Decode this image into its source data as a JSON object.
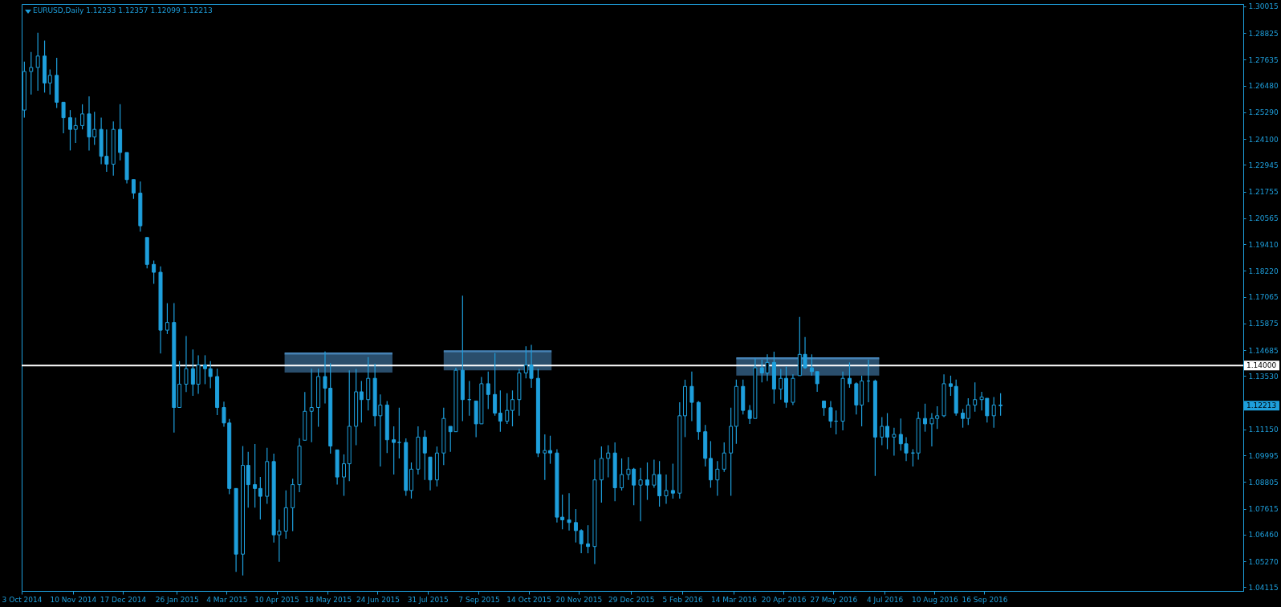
{
  "chart_data": {
    "type": "candlestick",
    "title": "EURUSD,Daily 1.12233 1.12357 1.12099 1.12213",
    "color": "#1e9fdc",
    "x": [
      "2014-10-05",
      "2014-10-10",
      "2014-10-15",
      "2014-10-20",
      "2014-10-24",
      "2014-10-29",
      "2014-11-03",
      "2014-11-08",
      "2014-11-12",
      "2014-11-17",
      "2014-11-22",
      "2014-11-26",
      "2014-12-01",
      "2014-12-05",
      "2014-12-10",
      "2014-12-15",
      "2014-12-20",
      "2014-12-25",
      "2014-12-30",
      "2015-01-04",
      "2015-01-09",
      "2015-01-14",
      "2015-01-19",
      "2015-01-24",
      "2015-01-28",
      "2015-02-02",
      "2015-02-07",
      "2015-02-11",
      "2015-02-16",
      "2015-02-20",
      "2015-02-25",
      "2015-03-02",
      "2015-03-06",
      "2015-03-11",
      "2015-03-16",
      "2015-03-20",
      "2015-03-25",
      "2015-03-29",
      "2015-04-03",
      "2015-04-08",
      "2015-04-12",
      "2015-04-17",
      "2015-04-22",
      "2015-04-27",
      "2015-05-01",
      "2015-05-06",
      "2015-05-11",
      "2015-05-16",
      "2015-05-20",
      "2015-05-25",
      "2015-05-30",
      "2015-06-03",
      "2015-06-08",
      "2015-06-12",
      "2015-06-17",
      "2015-06-22",
      "2015-06-26",
      "2015-07-01",
      "2015-07-06",
      "2015-07-10",
      "2015-07-15",
      "2015-07-19",
      "2015-07-24",
      "2015-07-29",
      "2015-08-02",
      "2015-08-07",
      "2015-08-12",
      "2015-08-17",
      "2015-08-21",
      "2015-08-26",
      "2015-08-31",
      "2015-09-05",
      "2015-09-09",
      "2015-09-14",
      "2015-09-19",
      "2015-09-23",
      "2015-09-28",
      "2015-10-02",
      "2015-10-07",
      "2015-10-12",
      "2015-10-16",
      "2015-10-21",
      "2015-10-26",
      "2015-10-30",
      "2015-11-04",
      "2015-11-08",
      "2015-11-13",
      "2015-11-18",
      "2015-11-22",
      "2015-11-27",
      "2015-12-02",
      "2015-12-07",
      "2015-12-12",
      "2015-12-17",
      "2015-12-22",
      "2015-12-27",
      "2015-12-31",
      "2016-01-05",
      "2016-01-10",
      "2016-01-15",
      "2016-01-19",
      "2016-01-24",
      "2016-01-29",
      "2016-02-03",
      "2016-02-07",
      "2016-02-12",
      "2016-02-17",
      "2016-02-22",
      "2016-02-26",
      "2016-03-02",
      "2016-03-07",
      "2016-03-12",
      "2016-03-16",
      "2016-03-21",
      "2016-03-26",
      "2016-03-30",
      "2016-04-04",
      "2016-04-08",
      "2016-04-13",
      "2016-04-18",
      "2016-04-22",
      "2016-04-27",
      "2016-05-02",
      "2016-05-06",
      "2016-05-11",
      "2016-05-15",
      "2016-05-20",
      "2016-05-25",
      "2016-05-29",
      "2016-06-03",
      "2016-06-08",
      "2016-06-13",
      "2016-06-17",
      "2016-06-22",
      "2016-06-27",
      "2016-07-02",
      "2016-07-06",
      "2016-07-11",
      "2016-07-16",
      "2016-07-20",
      "2016-07-25",
      "2016-07-29",
      "2016-08-03",
      "2016-08-08",
      "2016-08-12",
      "2016-08-17",
      "2016-08-22",
      "2016-08-26",
      "2016-08-31",
      "2016-09-04",
      "2016-09-09",
      "2016-09-14",
      "2016-09-18",
      "2016-09-23",
      "2016-09-28"
    ],
    "ohlc": [
      [
        1.2539,
        1.2755,
        1.2505,
        1.2711
      ],
      [
        1.2711,
        1.2798,
        1.2608,
        1.2729
      ],
      [
        1.2729,
        1.2884,
        1.2625,
        1.278
      ],
      [
        1.278,
        1.2849,
        1.2617,
        1.266
      ],
      [
        1.266,
        1.272,
        1.2608,
        1.2694
      ],
      [
        1.2694,
        1.2772,
        1.2548,
        1.2574
      ],
      [
        1.2574,
        1.2574,
        1.2436,
        1.2505
      ],
      [
        1.2505,
        1.2539,
        1.2359,
        1.2453
      ],
      [
        1.2453,
        1.2505,
        1.2393,
        1.247
      ],
      [
        1.247,
        1.2565,
        1.2453,
        1.2522
      ],
      [
        1.2522,
        1.26,
        1.2359,
        1.2419
      ],
      [
        1.2419,
        1.2531,
        1.2384,
        1.2453
      ],
      [
        1.2453,
        1.2505,
        1.2298,
        1.2333
      ],
      [
        1.2333,
        1.2453,
        1.2264,
        1.2298
      ],
      [
        1.2298,
        1.2488,
        1.2247,
        1.2453
      ],
      [
        1.2453,
        1.2565,
        1.2315,
        1.235
      ],
      [
        1.235,
        1.235,
        1.2212,
        1.2229
      ],
      [
        1.2229,
        1.2229,
        1.2143,
        1.2169
      ],
      [
        1.2169,
        1.2221,
        1.1997,
        1.2023
      ],
      [
        1.1971,
        1.1971,
        1.1833,
        1.1851
      ],
      [
        1.1851,
        1.1868,
        1.1764,
        1.1816
      ],
      [
        1.1816,
        1.1842,
        1.1454,
        1.1558
      ],
      [
        1.1558,
        1.1678,
        1.1541,
        1.1592
      ],
      [
        1.1592,
        1.1678,
        1.1101,
        1.1213
      ],
      [
        1.1213,
        1.142,
        1.1213,
        1.1317
      ],
      [
        1.1317,
        1.1532,
        1.1282,
        1.1386
      ],
      [
        1.1386,
        1.1472,
        1.1265,
        1.1317
      ],
      [
        1.1317,
        1.1446,
        1.1274,
        1.1403
      ],
      [
        1.1403,
        1.1446,
        1.1317,
        1.1386
      ],
      [
        1.1386,
        1.142,
        1.1299,
        1.1351
      ],
      [
        1.1351,
        1.1386,
        1.1179,
        1.1213
      ],
      [
        1.1213,
        1.1239,
        1.1127,
        1.1144
      ],
      [
        1.1144,
        1.1162,
        1.0826,
        1.0852
      ],
      [
        1.0852,
        1.0852,
        1.048,
        1.0559
      ],
      [
        1.0559,
        1.1041,
        1.0464,
        1.0955
      ],
      [
        1.0955,
        1.1015,
        1.0766,
        1.0869
      ],
      [
        1.0869,
        1.105,
        1.0766,
        1.0852
      ],
      [
        1.0852,
        1.0903,
        1.0714,
        1.0817
      ],
      [
        1.0817,
        1.1033,
        1.0783,
        1.0972
      ],
      [
        1.0972,
        1.1007,
        1.0611,
        1.0645
      ],
      [
        1.0645,
        1.0714,
        1.0525,
        1.0662
      ],
      [
        1.0662,
        1.0843,
        1.0628,
        1.0766
      ],
      [
        1.0766,
        1.0895,
        1.0662,
        1.0869
      ],
      [
        1.0869,
        1.1076,
        1.0835,
        1.1041
      ],
      [
        1.1067,
        1.1282,
        1.1067,
        1.1196
      ],
      [
        1.1196,
        1.1386,
        1.1058,
        1.1213
      ],
      [
        1.1213,
        1.1386,
        1.1127,
        1.1351
      ],
      [
        1.1351,
        1.1463,
        1.1231,
        1.1299
      ],
      [
        1.1299,
        1.1411,
        1.1007,
        1.1041
      ],
      [
        1.1024,
        1.1024,
        1.0869,
        1.0903
      ],
      [
        1.0903,
        1.1004,
        1.0819,
        1.0962
      ],
      [
        1.0962,
        1.1379,
        1.0885,
        1.1129
      ],
      [
        1.1129,
        1.1385,
        1.1045,
        1.1283
      ],
      [
        1.1283,
        1.1331,
        1.1146,
        1.1248
      ],
      [
        1.1248,
        1.1438,
        1.12,
        1.1343
      ],
      [
        1.1343,
        1.1408,
        1.1129,
        1.1176
      ],
      [
        1.1176,
        1.1271,
        1.095,
        1.1224
      ],
      [
        1.1224,
        1.1242,
        1.101,
        1.1069
      ],
      [
        1.1069,
        1.1129,
        1.0914,
        1.1057
      ],
      [
        1.1057,
        1.1212,
        1.0986,
        1.1057
      ],
      [
        1.1057,
        1.1075,
        1.0819,
        1.0843
      ],
      [
        1.0843,
        1.0968,
        1.0807,
        1.0938
      ],
      [
        1.0938,
        1.1129,
        1.0914,
        1.1081
      ],
      [
        1.1081,
        1.1111,
        1.089,
        1.101
      ],
      [
        1.0992,
        1.0992,
        1.0843,
        1.089
      ],
      [
        1.089,
        1.1039,
        1.0861,
        1.101
      ],
      [
        1.101,
        1.1212,
        1.0956,
        1.1164
      ],
      [
        1.1129,
        1.1129,
        1.1015,
        1.1105
      ],
      [
        1.1105,
        1.139,
        1.1105,
        1.1379
      ],
      [
        1.1379,
        1.1712,
        1.1152,
        1.1248
      ],
      [
        1.1248,
        1.1331,
        1.1176,
        1.1248
      ],
      [
        1.1242,
        1.1242,
        1.1081,
        1.114
      ],
      [
        1.114,
        1.1349,
        1.114,
        1.1319
      ],
      [
        1.1319,
        1.1373,
        1.1206,
        1.1271
      ],
      [
        1.1271,
        1.1456,
        1.1176,
        1.1188
      ],
      [
        1.1188,
        1.1289,
        1.1105,
        1.1152
      ],
      [
        1.1152,
        1.1277,
        1.114,
        1.12
      ],
      [
        1.12,
        1.1289,
        1.1129,
        1.1248
      ],
      [
        1.1248,
        1.1385,
        1.1176,
        1.1367
      ],
      [
        1.1367,
        1.1486,
        1.1343,
        1.1402
      ],
      [
        1.1402,
        1.1492,
        1.1301,
        1.1343
      ],
      [
        1.1343,
        1.1385,
        1.0992,
        1.101
      ],
      [
        1.101,
        1.1093,
        1.089,
        1.1021
      ],
      [
        1.1021,
        1.1087,
        1.0962,
        1.101
      ],
      [
        1.101,
        1.1027,
        1.07,
        1.0724
      ],
      [
        1.0724,
        1.0825,
        1.067,
        1.0712
      ],
      [
        1.0712,
        1.0831,
        1.0664,
        1.07
      ],
      [
        1.07,
        1.076,
        1.0611,
        1.0664
      ],
      [
        1.0664,
        1.067,
        1.0563,
        1.0605
      ],
      [
        1.0605,
        1.0688,
        1.0563,
        1.0593
      ],
      [
        1.0593,
        1.098,
        1.0515,
        1.089
      ],
      [
        1.089,
        1.1039,
        1.0789,
        1.0986
      ],
      [
        1.0986,
        1.1045,
        1.0902,
        1.101
      ],
      [
        1.101,
        1.1057,
        1.0795,
        1.0855
      ],
      [
        1.0855,
        1.0986,
        1.0843,
        1.0914
      ],
      [
        1.0914,
        1.0992,
        1.089,
        1.0938
      ],
      [
        1.0938,
        1.0944,
        1.0777,
        1.0867
      ],
      [
        1.0867,
        1.0944,
        1.0706,
        1.089
      ],
      [
        1.089,
        1.0968,
        1.0801,
        1.0867
      ],
      [
        1.0867,
        1.098,
        1.0855,
        1.0914
      ],
      [
        1.0914,
        1.0974,
        1.0771,
        1.0819
      ],
      [
        1.0819,
        1.0914,
        1.0783,
        1.0843
      ],
      [
        1.0843,
        1.0962,
        1.0807,
        1.0831
      ],
      [
        1.0831,
        1.1236,
        1.0807,
        1.1176
      ],
      [
        1.1176,
        1.1337,
        1.1081,
        1.1307
      ],
      [
        1.1307,
        1.1373,
        1.1152,
        1.1236
      ],
      [
        1.1236,
        1.1242,
        1.1069,
        1.1105
      ],
      [
        1.1105,
        1.1135,
        1.095,
        1.0986
      ],
      [
        1.0986,
        1.1063,
        1.0855,
        1.089
      ],
      [
        1.089,
        1.0974,
        1.0819,
        1.0938
      ],
      [
        1.0938,
        1.1057,
        1.0926,
        1.101
      ],
      [
        1.101,
        1.1212,
        1.0819,
        1.1129
      ],
      [
        1.1129,
        1.1337,
        1.1051,
        1.1307
      ],
      [
        1.1307,
        1.1337,
        1.1182,
        1.12
      ],
      [
        1.12,
        1.1224,
        1.114,
        1.1164
      ],
      [
        1.1164,
        1.1432,
        1.1164,
        1.139
      ],
      [
        1.139,
        1.1426,
        1.1325,
        1.1367
      ],
      [
        1.1367,
        1.145,
        1.1331,
        1.1414
      ],
      [
        1.1414,
        1.1462,
        1.123,
        1.1295
      ],
      [
        1.1295,
        1.1385,
        1.1248,
        1.1343
      ],
      [
        1.1343,
        1.1396,
        1.1212,
        1.1236
      ],
      [
        1.1236,
        1.1361,
        1.1224,
        1.1343
      ],
      [
        1.1355,
        1.1617,
        1.1355,
        1.145
      ],
      [
        1.145,
        1.1527,
        1.1385,
        1.139
      ],
      [
        1.139,
        1.145,
        1.1355,
        1.1373
      ],
      [
        1.1373,
        1.1373,
        1.1283,
        1.1319
      ],
      [
        1.1242,
        1.1242,
        1.1176,
        1.1212
      ],
      [
        1.1212,
        1.1242,
        1.1123,
        1.1152
      ],
      [
        1.1152,
        1.12,
        1.1093,
        1.1152
      ],
      [
        1.1152,
        1.1373,
        1.1111,
        1.1343
      ],
      [
        1.1343,
        1.1414,
        1.1301,
        1.1319
      ],
      [
        1.1319,
        1.1325,
        1.1182,
        1.1224
      ],
      [
        1.1224,
        1.1355,
        1.1129,
        1.1331
      ],
      [
        1.1331,
        1.1426,
        1.1236,
        1.1331
      ],
      [
        1.1331,
        1.1337,
        1.0908,
        1.1081
      ],
      [
        1.1081,
        1.117,
        1.1045,
        1.1129
      ],
      [
        1.1129,
        1.1188,
        1.1027,
        1.1081
      ],
      [
        1.1081,
        1.1123,
        1.0998,
        1.1093
      ],
      [
        1.1093,
        1.1164,
        1.1021,
        1.1051
      ],
      [
        1.1051,
        1.1081,
        1.0974,
        1.101
      ],
      [
        1.101,
        1.1027,
        1.095,
        1.101
      ],
      [
        1.101,
        1.1194,
        1.098,
        1.1164
      ],
      [
        1.1164,
        1.123,
        1.1105,
        1.114
      ],
      [
        1.114,
        1.1188,
        1.1039,
        1.1164
      ],
      [
        1.1164,
        1.1218,
        1.1117,
        1.1176
      ],
      [
        1.1176,
        1.1361,
        1.117,
        1.1319
      ],
      [
        1.1319,
        1.1355,
        1.1265,
        1.1307
      ],
      [
        1.1307,
        1.1337,
        1.1176,
        1.1188
      ],
      [
        1.1188,
        1.1206,
        1.1123,
        1.1164
      ],
      [
        1.1164,
        1.1254,
        1.1135,
        1.1224
      ],
      [
        1.1224,
        1.1325,
        1.1194,
        1.1248
      ],
      [
        1.1248,
        1.1283,
        1.12,
        1.126
      ],
      [
        1.1254,
        1.1254,
        1.1146,
        1.1176
      ],
      [
        1.1176,
        1.126,
        1.1123,
        1.1224
      ],
      [
        1.1224,
        1.1277,
        1.1176,
        1.1221
      ]
    ],
    "series": [
      {
        "type": "line",
        "x": [
          "2015-04-16",
          "2015-07-05"
        ],
        "values": [
          1.1454,
          1.1454
        ],
        "lower": [
          1.1369,
          1.1369
        ],
        "upper": [
          1.1454,
          1.1454
        ],
        "color": "#4682b4"
      },
      {
        "type": "line",
        "x": [
          "2015-08-12",
          "2015-10-31"
        ],
        "values": [
          1.1464,
          1.1464
        ],
        "lower": [
          1.1379,
          1.1379
        ],
        "upper": [
          1.1464,
          1.1464
        ],
        "color": "#4682b4"
      },
      {
        "type": "line",
        "x": [
          "2016-03-16",
          "2016-06-30"
        ],
        "values": [
          1.1432,
          1.1432
        ],
        "lower": [
          1.1355,
          1.1355
        ],
        "upper": [
          1.1432,
          1.1432
        ],
        "color": "#4682b4"
      }
    ],
    "xlim": [
      "2014-10-03",
      "2017-03-27"
    ],
    "xticks": [
      {
        "value": "2014-10-03",
        "label": "3 Oct 2014"
      },
      {
        "value": "2014-11-10",
        "label": "10 Nov 2014"
      },
      {
        "value": "2014-12-17",
        "label": "17 Dec 2014"
      },
      {
        "value": "2015-01-26",
        "label": "26 Jan 2015"
      },
      {
        "value": "2015-03-04",
        "label": "4 Mar 2015"
      },
      {
        "value": "2015-04-10",
        "label": "10 Apr 2015"
      },
      {
        "value": "2015-05-18",
        "label": "18 May 2015"
      },
      {
        "value": "2015-06-24",
        "label": "24 Jun 2015"
      },
      {
        "value": "2015-07-31",
        "label": "31 Jul 2015"
      },
      {
        "value": "2015-09-07",
        "label": "7 Sep 2015"
      },
      {
        "value": "2015-10-14",
        "label": "14 Oct 2015"
      },
      {
        "value": "2015-11-20",
        "label": "20 Nov 2015"
      },
      {
        "value": "2015-12-29",
        "label": "29 Dec 2015"
      },
      {
        "value": "2016-02-05",
        "label": "5 Feb 2016"
      },
      {
        "value": "2016-03-14",
        "label": "14 Mar 2016"
      },
      {
        "value": "2016-04-20",
        "label": "20 Apr 2016"
      },
      {
        "value": "2016-05-27",
        "label": "27 May 2016"
      },
      {
        "value": "2016-07-04",
        "label": "4 Jul 2016"
      },
      {
        "value": "2016-08-10",
        "label": "10 Aug 2016"
      },
      {
        "value": "2016-09-16",
        "label": "16 Sep 2016"
      }
    ],
    "ylim": [
      1.0395,
      1.3012
    ],
    "yticks": [
      1.30015,
      1.28825,
      1.27635,
      {
        "value": 1.2648,
        "label": "1.26480"
      },
      {
        "value": 1.2529,
        "label": "1.25290"
      },
      {
        "value": 1.241,
        "label": "1.24100"
      },
      1.22945,
      1.21755,
      1.20565,
      {
        "value": 1.1941,
        "label": "1.19410"
      },
      {
        "value": 1.1822,
        "label": "1.18220"
      },
      1.17065,
      1.15875,
      1.14685,
      {
        "value": 1.1353,
        "label": "1.13530"
      },
      {
        "value": 1.1115,
        "label": "1.11150"
      },
      1.09995,
      1.08805,
      1.07615,
      {
        "value": 1.0646,
        "label": "1.06460"
      },
      {
        "value": 1.0527,
        "label": "1.05270"
      },
      1.04115
    ],
    "ref_lines": [
      {
        "axis": "y",
        "value": 1.14,
        "label": "1.14000",
        "color": "#ffffff"
      }
    ],
    "annotations": [
      "1.12213"
    ]
  }
}
